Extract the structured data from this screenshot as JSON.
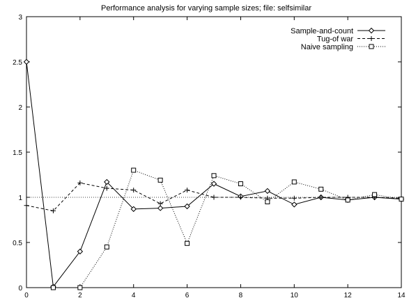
{
  "chart_data": {
    "type": "line",
    "title": "Performance analysis for varying sample sizes; file: selfsimilar",
    "xlabel": "",
    "ylabel": "",
    "xlim": [
      0,
      14
    ],
    "ylim": [
      0,
      3
    ],
    "x_ticks": [
      0,
      2,
      4,
      6,
      8,
      10,
      12,
      14
    ],
    "y_ticks": [
      0,
      0.5,
      1,
      1.5,
      2,
      2.5,
      3
    ],
    "x_tick_labels": [
      "0",
      "2",
      "4",
      "6",
      "8",
      "10",
      "12",
      "14"
    ],
    "y_tick_labels": [
      "0",
      "0.5",
      "1",
      "1.5",
      "2",
      "2.5",
      "3"
    ],
    "grid": false,
    "legend_position": "top-right",
    "reference_line": {
      "y": 1,
      "style": "dotted"
    },
    "series": [
      {
        "name": "Sample-and-count",
        "marker": "diamond",
        "line_style": "solid",
        "x": [
          0,
          1,
          2,
          3,
          4,
          5,
          6,
          7,
          8,
          9,
          10,
          11,
          12,
          13,
          14
        ],
        "y": [
          2.5,
          0.01,
          0.4,
          1.17,
          0.87,
          0.88,
          0.9,
          1.15,
          1.01,
          1.07,
          0.92,
          1.0,
          0.97,
          1.0,
          0.98
        ]
      },
      {
        "name": "Tug-of war",
        "marker": "plus",
        "line_style": "dashed",
        "x": [
          0,
          1,
          2,
          3,
          4,
          5,
          6,
          7,
          8,
          9,
          10,
          11,
          12,
          13,
          14
        ],
        "y": [
          0.91,
          0.85,
          1.16,
          1.1,
          1.08,
          0.93,
          1.08,
          1.0,
          1.0,
          0.99,
          0.99,
          1.0,
          1.0,
          1.0,
          0.99
        ]
      },
      {
        "name": "Naive sampling",
        "marker": "square",
        "line_style": "dotted",
        "x": [
          1,
          2,
          3,
          4,
          5,
          6,
          7,
          8,
          9,
          10,
          11,
          12,
          13,
          14
        ],
        "y": [
          0.0,
          0.0,
          0.45,
          1.3,
          1.19,
          0.49,
          1.24,
          1.15,
          0.95,
          1.17,
          1.09,
          0.97,
          1.03,
          0.98
        ]
      }
    ]
  }
}
